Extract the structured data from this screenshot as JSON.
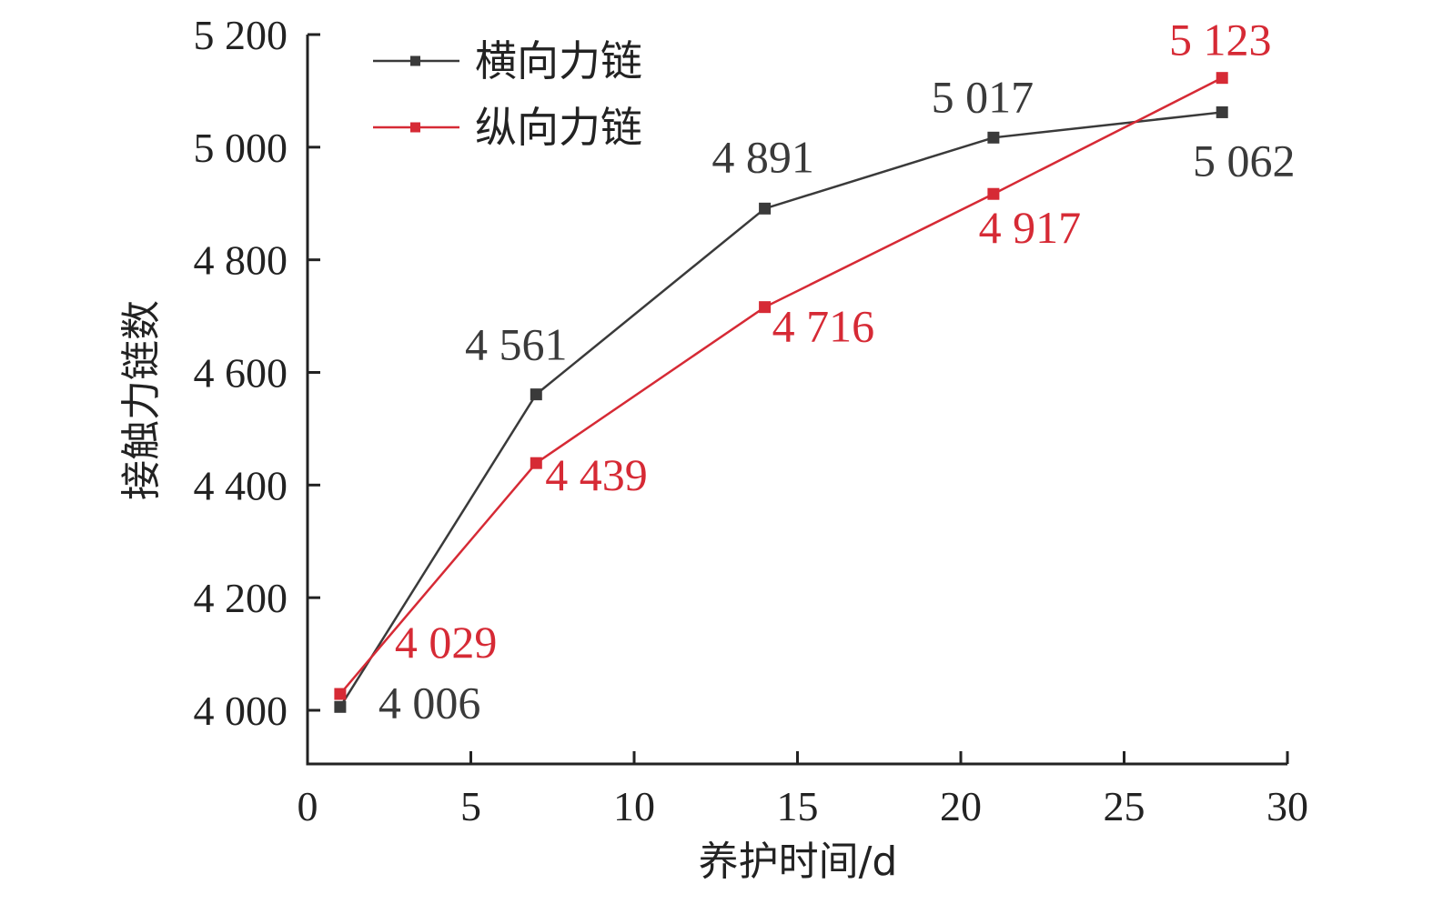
{
  "chart_data": {
    "type": "line",
    "title": "",
    "xlabel": "养护时间/d",
    "ylabel": "接触力链数",
    "xlim": [
      0,
      30
    ],
    "ylim": [
      3950,
      5200
    ],
    "x_ticks": [
      0,
      5,
      10,
      15,
      20,
      25,
      30
    ],
    "x_tick_labels": [
      "0",
      "5",
      "10",
      "15",
      "20",
      "25",
      "30"
    ],
    "y_ticks": [
      4000,
      4200,
      4400,
      4600,
      4800,
      5000,
      5200
    ],
    "y_tick_labels": [
      "4 000",
      "4 200",
      "4 400",
      "4 600",
      "4 800",
      "5 000",
      "5 200"
    ],
    "grid": false,
    "legend_position": "top-left",
    "x": [
      1,
      7,
      14,
      21,
      28
    ],
    "series": [
      {
        "name": "横向力链",
        "color": "#3a3a3a",
        "marker": "square",
        "values": [
          4006,
          4561,
          4891,
          5017,
          5062
        ],
        "labels": [
          "4 006",
          "4 561",
          "4 891",
          "5 017",
          "5 062"
        ]
      },
      {
        "name": "纵向力链",
        "color": "#d62a35",
        "marker": "square",
        "values": [
          4029,
          4439,
          4716,
          4917,
          5123
        ],
        "labels": [
          "4 029",
          "4 439",
          "4 716",
          "4 917",
          "5 123"
        ]
      }
    ]
  }
}
